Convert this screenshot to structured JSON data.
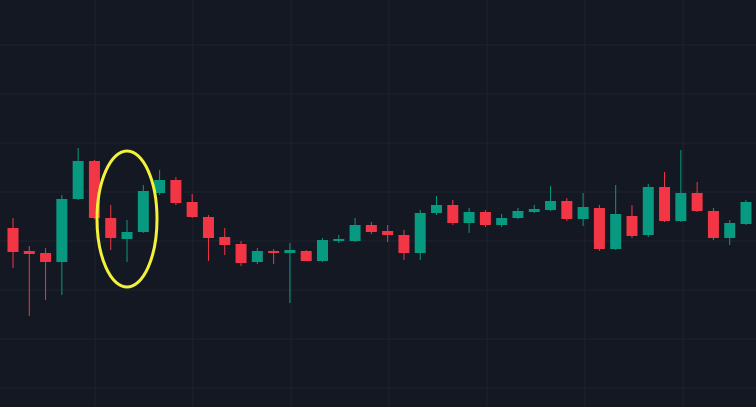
{
  "chart_data": {
    "type": "candlestick",
    "open": [
      179,
      156,
      154,
      145,
      208,
      246,
      189,
      168,
      175,
      214,
      227,
      205,
      190,
      170,
      163,
      145,
      156,
      154,
      156,
      146,
      166,
      166,
      182,
      176,
      172,
      154,
      194,
      202,
      184,
      195,
      182,
      189,
      195,
      197,
      206,
      188,
      199,
      158,
      191,
      172,
      220,
      186,
      214,
      196,
      169,
      183
    ],
    "high": [
      189,
      161,
      159,
      212,
      259,
      247,
      202,
      187,
      222,
      237,
      230,
      213,
      192,
      179,
      166,
      159,
      158,
      164,
      157,
      169,
      172,
      189,
      185,
      182,
      177,
      197,
      211,
      207,
      199,
      197,
      193,
      199,
      202,
      221,
      209,
      214,
      202,
      222,
      202,
      223,
      235,
      257,
      225,
      199,
      187,
      207
    ],
    "low": [
      139,
      91,
      107,
      112,
      207,
      188,
      157,
      145,
      174,
      212,
      202,
      189,
      146,
      152,
      141,
      143,
      143,
      104,
      146,
      145,
      164,
      165,
      173,
      165,
      147,
      147,
      192,
      182,
      174,
      180,
      180,
      188,
      194,
      196,
      186,
      181,
      156,
      157,
      169,
      170,
      185,
      185,
      195,
      167,
      162,
      182
    ],
    "close": [
      155,
      153,
      145,
      208,
      246,
      189,
      169,
      175,
      216,
      227,
      204,
      190,
      169,
      162,
      144,
      156,
      154,
      157,
      146,
      167,
      168,
      182,
      175,
      172,
      154,
      194,
      202,
      184,
      195,
      182,
      189,
      196,
      198,
      206,
      188,
      200,
      158,
      193,
      171,
      220,
      186,
      214,
      196,
      169,
      184,
      205
    ],
    "up_color": "#089981",
    "down_color": "#f23645",
    "ylim": [
      0,
      407
    ],
    "yticks": [
      19,
      68,
      117,
      166,
      215,
      264,
      313,
      362
    ],
    "grid": true
  }
}
